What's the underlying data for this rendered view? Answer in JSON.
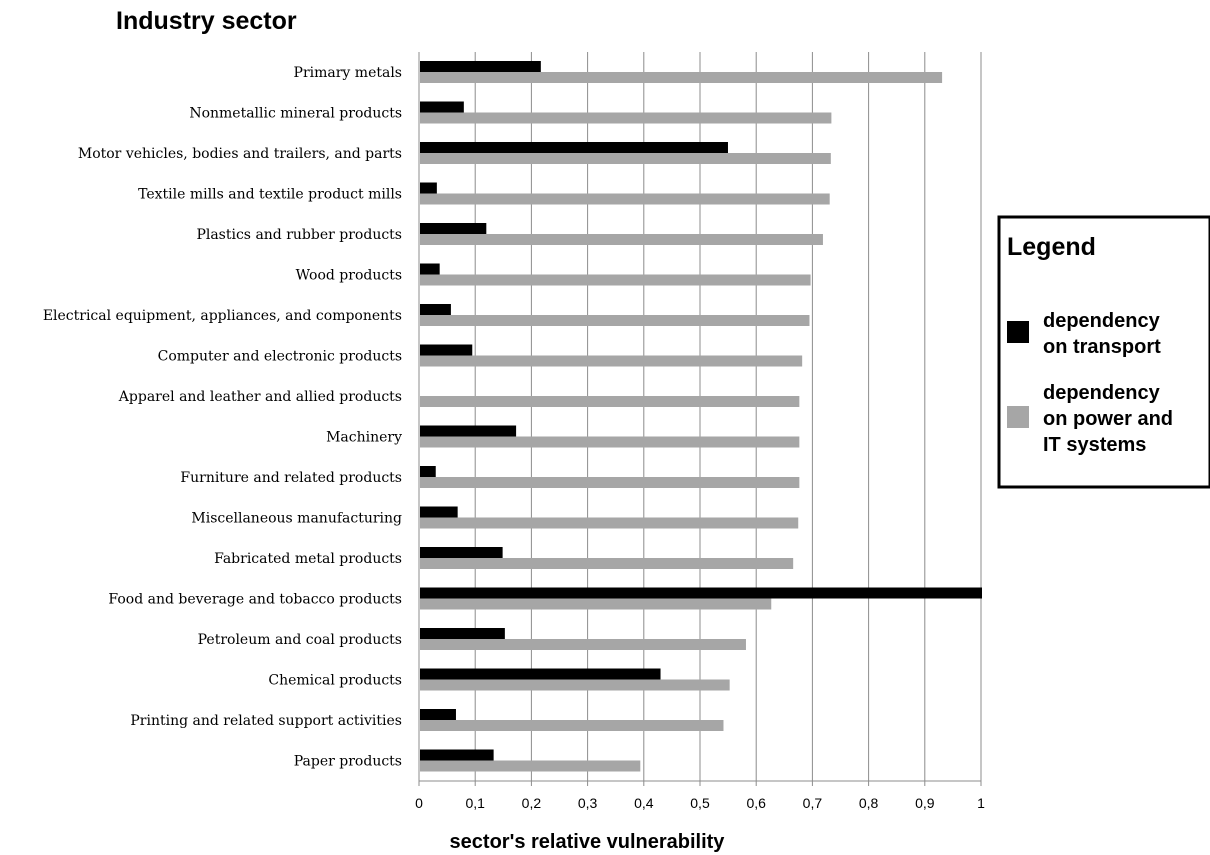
{
  "chart_data": {
    "type": "bar",
    "orientation": "horizontal",
    "title": "Industry sector",
    "xlabel": "sector's relative vulnerability",
    "xlim": [
      0,
      1
    ],
    "xticks": [
      0,
      0.1,
      0.2,
      0.3,
      0.4,
      0.5,
      0.6,
      0.7,
      0.8,
      0.9,
      1
    ],
    "xtick_labels": [
      "0",
      "0,1",
      "0,2",
      "0,3",
      "0,4",
      "0,5",
      "0,6",
      "0,7",
      "0,8",
      "0,9",
      "1"
    ],
    "grid": "vertical",
    "legend_placement": "right",
    "categories": [
      "Primary metals",
      "Nonmetallic mineral products",
      "Motor vehicles, bodies and trailers, and parts",
      "Textile mills and textile product mills",
      "Plastics and rubber products",
      "Wood products",
      "Electrical equipment, appliances, and components",
      "Computer and electronic products",
      "Apparel and leather and allied products",
      "Machinery",
      "Furniture and related products",
      "Miscellaneous manufacturing",
      "Fabricated metal products",
      "Food and beverage and tobacco products",
      "Petroleum and coal products",
      "Chemical products",
      "Printing and related support activities",
      "Paper products"
    ],
    "series": [
      {
        "name": "dependency on transport",
        "color": "#000000",
        "values": [
          0.215,
          0.078,
          0.548,
          0.03,
          0.118,
          0.035,
          0.055,
          0.093,
          0.0,
          0.171,
          0.028,
          0.067,
          0.147,
          1.0,
          0.151,
          0.428,
          0.064,
          0.131
        ]
      },
      {
        "name": "dependency on power and IT systems",
        "color": "#a6a6a6",
        "values": [
          0.929,
          0.732,
          0.731,
          0.729,
          0.717,
          0.695,
          0.693,
          0.68,
          0.675,
          0.675,
          0.675,
          0.673,
          0.664,
          0.625,
          0.58,
          0.551,
          0.54,
          0.392
        ]
      }
    ]
  },
  "legend": {
    "title": "Legend",
    "items": [
      {
        "lines": [
          "dependency",
          "on transport"
        ],
        "color": "#000000"
      },
      {
        "lines": [
          "dependency",
          "on power and",
          "IT systems"
        ],
        "color": "#a6a6a6"
      }
    ]
  }
}
